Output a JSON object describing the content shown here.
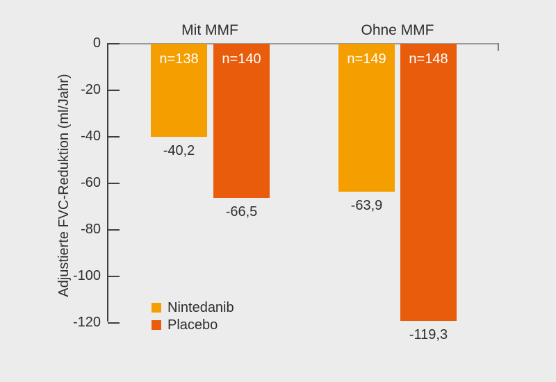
{
  "chart_data": {
    "type": "bar",
    "ylabel": "Adjustierte FVC-Reduktion (ml/Jahr)",
    "ylim": [
      -120,
      0
    ],
    "grid": false,
    "legend_position": "inside-bottom-left",
    "yticks": [
      {
        "value": 0,
        "label": "0"
      },
      {
        "value": -20,
        "label": "-20"
      },
      {
        "value": -40,
        "label": "-40"
      },
      {
        "value": -60,
        "label": "-60"
      },
      {
        "value": -80,
        "label": "-80"
      },
      {
        "value": -100,
        "label": "-100"
      },
      {
        "value": -120,
        "label": "-120"
      }
    ],
    "groups": [
      {
        "label": "Mit MMF",
        "bars": [
          {
            "series": "Nintedanib",
            "n_label": "n=138",
            "value": -40.2,
            "value_label": "-40,2"
          },
          {
            "series": "Placebo",
            "n_label": "n=140",
            "value": -66.5,
            "value_label": "-66,5"
          }
        ]
      },
      {
        "label": "Ohne MMF",
        "bars": [
          {
            "series": "Nintedanib",
            "n_label": "n=149",
            "value": -63.9,
            "value_label": "-63,9"
          },
          {
            "series": "Placebo",
            "n_label": "n=148",
            "value": -119.3,
            "value_label": "-119,3"
          }
        ]
      }
    ],
    "legend": [
      {
        "label": "Nintedanib",
        "color": "#F49E00"
      },
      {
        "label": "Placebo",
        "color": "#E85C0C"
      }
    ],
    "colors": {
      "background": "#ECECEC",
      "axis": "#3F3F3F",
      "baseline": "#9B9B9B",
      "text": "#2E2E2E",
      "bar_inner_text": "#FFFFFF"
    }
  }
}
